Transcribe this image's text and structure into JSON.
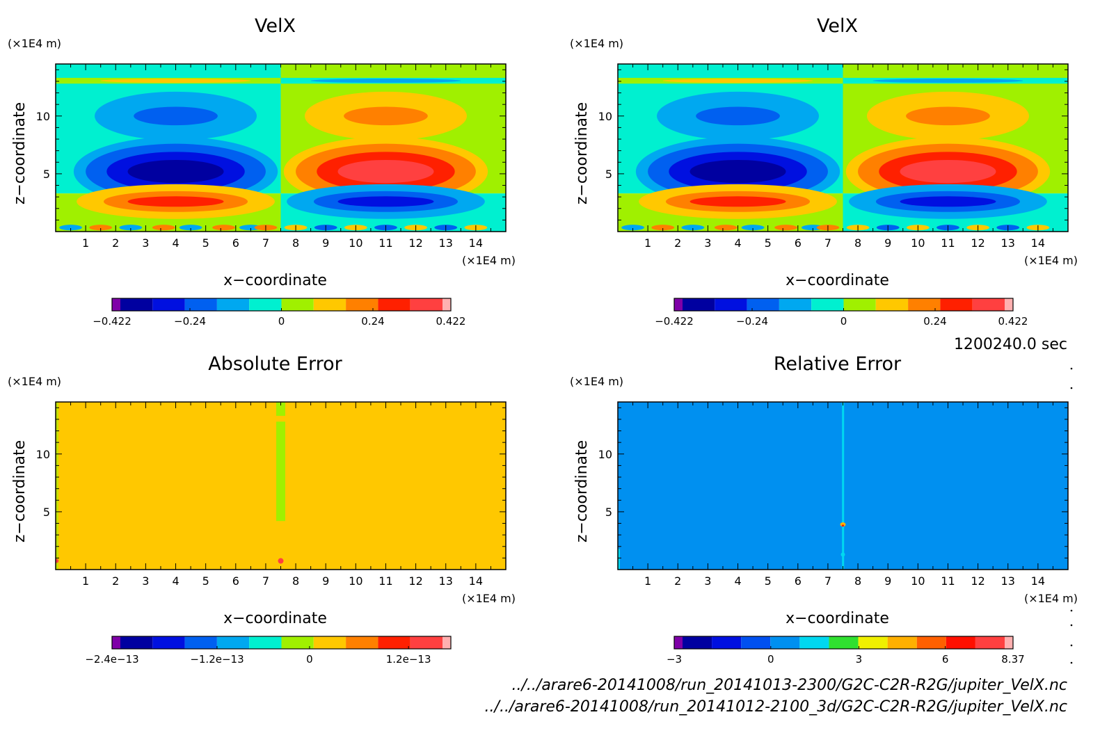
{
  "time_label": "1200240.0 sec",
  "file_paths": [
    "../../arare6-20141008/run_20141013-2300/G2C-C2R-R2G/jupiter_VelX.nc",
    "../../arare6-20141008/run_20141012-2100_3d/G2C-C2R-R2G/jupiter_VelX.nc"
  ],
  "chart_data": [
    {
      "type": "heatmap",
      "title": "VelX",
      "xlabel": "x−coordinate",
      "ylabel": "z−coordinate",
      "x_unit": "(×1E4 m)",
      "y_unit": "(×1E4 m)",
      "xlim": [
        0,
        15
      ],
      "ylim": [
        0,
        14.5
      ],
      "x_ticks": [
        "1",
        "2",
        "3",
        "4",
        "5",
        "6",
        "7",
        "8",
        "9",
        "10",
        "11",
        "12",
        "13",
        "14"
      ],
      "y_ticks": [
        "5",
        "10"
      ],
      "colorbar": {
        "labels": [
          "−0.422",
          "−0.24",
          "0",
          "0.24",
          "0.422"
        ],
        "colors": [
          "#7f00a8",
          "#0000a0",
          "#0010e0",
          "#0060f0",
          "#00a8f0",
          "#00f0d0",
          "#a0f000",
          "#ffc800",
          "#ff8000",
          "#ff2000",
          "#ff4040",
          "#ffb0b0"
        ]
      },
      "pattern": "velx"
    },
    {
      "type": "heatmap",
      "title": "VelX",
      "xlabel": "x−coordinate",
      "ylabel": "z−coordinate",
      "x_unit": "(×1E4 m)",
      "y_unit": "(×1E4 m)",
      "xlim": [
        0,
        15
      ],
      "ylim": [
        0,
        14.5
      ],
      "x_ticks": [
        "1",
        "2",
        "3",
        "4",
        "5",
        "6",
        "7",
        "8",
        "9",
        "10",
        "11",
        "12",
        "13",
        "14"
      ],
      "y_ticks": [
        "5",
        "10"
      ],
      "colorbar": {
        "labels": [
          "−0.422",
          "−0.24",
          "0",
          "0.24",
          "0.422"
        ],
        "colors": [
          "#7f00a8",
          "#0000a0",
          "#0010e0",
          "#0060f0",
          "#00a8f0",
          "#00f0d0",
          "#a0f000",
          "#ffc800",
          "#ff8000",
          "#ff2000",
          "#ff4040",
          "#ffb0b0"
        ]
      },
      "pattern": "velx"
    },
    {
      "type": "heatmap",
      "title": "Absolute Error",
      "xlabel": "x−coordinate",
      "ylabel": "z−coordinate",
      "x_unit": "(×1E4 m)",
      "y_unit": "(×1E4 m)",
      "xlim": [
        0,
        15
      ],
      "ylim": [
        0,
        14.5
      ],
      "x_ticks": [
        "1",
        "2",
        "3",
        "4",
        "5",
        "6",
        "7",
        "8",
        "9",
        "10",
        "11",
        "12",
        "13",
        "14"
      ],
      "y_ticks": [
        "5",
        "10"
      ],
      "colorbar": {
        "labels": [
          "−2.4e−13",
          "−1.2e−13",
          "0",
          "1.2e−13"
        ],
        "colors": [
          "#7f00a8",
          "#0000a0",
          "#0010e0",
          "#0060f0",
          "#00a8f0",
          "#00f0d0",
          "#a0f000",
          "#ffc800",
          "#ff8000",
          "#ff2000",
          "#ff4040",
          "#ffb0b0"
        ]
      },
      "pattern": "abs_error",
      "background_color": "#ffc800",
      "feature_color": "#a0f000"
    },
    {
      "type": "heatmap",
      "title": "Relative Error",
      "xlabel": "x−coordinate",
      "ylabel": "z−coordinate",
      "x_unit": "(×1E4 m)",
      "y_unit": "(×1E4 m)",
      "xlim": [
        0,
        15
      ],
      "ylim": [
        0,
        14.5
      ],
      "x_ticks": [
        "1",
        "2",
        "3",
        "4",
        "5",
        "6",
        "7",
        "8",
        "9",
        "10",
        "11",
        "12",
        "13",
        "14"
      ],
      "y_ticks": [
        "5",
        "10"
      ],
      "colorbar": {
        "labels": [
          "−3",
          "0",
          "3",
          "6",
          "8.37"
        ],
        "colors": [
          "#7f00a8",
          "#0000a0",
          "#0010e0",
          "#0050f0",
          "#0090f0",
          "#00d8f0",
          "#30e030",
          "#f0f000",
          "#ffb000",
          "#ff6000",
          "#ff1000",
          "#ff4040",
          "#ffb0b0"
        ]
      },
      "pattern": "rel_error",
      "background_color": "#0090f0",
      "feature_color": "#00d8f0"
    }
  ]
}
